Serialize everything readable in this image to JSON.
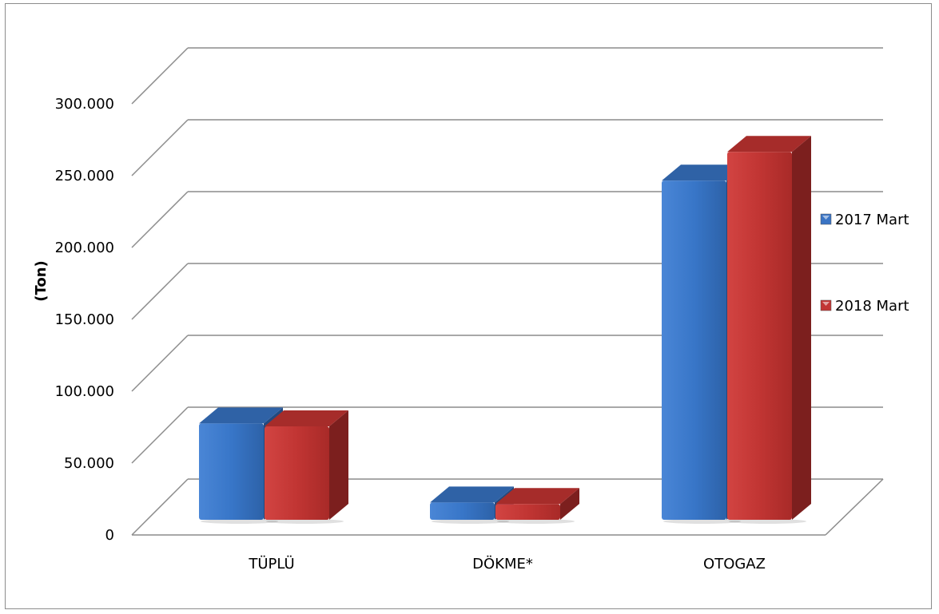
{
  "chart_data": {
    "type": "bar",
    "ylabel": "(Ton)",
    "categories": [
      "TÜPLÜ",
      "DÖKME*",
      "OTOGAZ"
    ],
    "series": [
      {
        "name": "2017 Mart",
        "values": [
          67000,
          12000,
          236000
        ],
        "color": "#3a74c4"
      },
      {
        "name": "2018 Mart",
        "values": [
          65000,
          11000,
          256000
        ],
        "color": "#c23634"
      }
    ],
    "ylim": [
      0,
      300000
    ],
    "yticks": [
      0,
      50000,
      100000,
      150000,
      200000,
      250000,
      300000
    ],
    "ytick_labels": [
      "0",
      "50.000",
      "100.000",
      "150.000",
      "200.000",
      "250.000",
      "300.000"
    ],
    "grid": true,
    "legend": "right"
  }
}
